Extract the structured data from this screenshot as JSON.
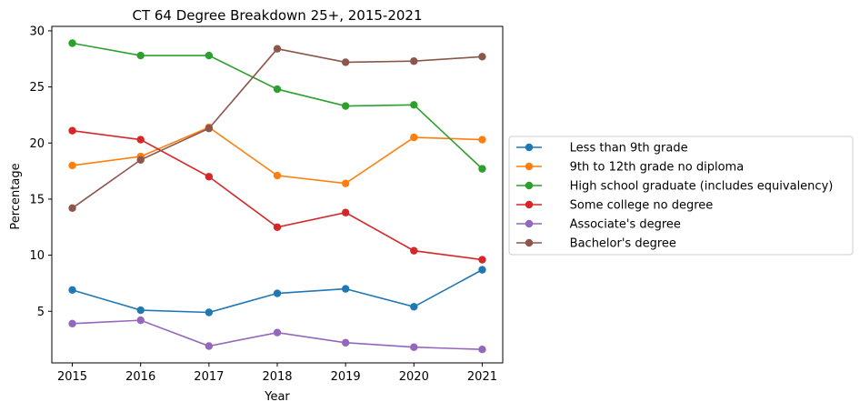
{
  "chart_data": {
    "type": "line",
    "title": "CT 64 Degree Breakdown 25+, 2015-2021",
    "xlabel": "Year",
    "ylabel": "Percentage",
    "x": [
      2015,
      2016,
      2017,
      2018,
      2019,
      2020,
      2021
    ],
    "xticks": [
      "2015",
      "2016",
      "2017",
      "2018",
      "2019",
      "2020",
      "2021"
    ],
    "ylim": [
      0.4,
      30.4
    ],
    "yticks": [
      5,
      10,
      15,
      20,
      25,
      30
    ],
    "ytick_labels": [
      "5",
      "10",
      "15",
      "20",
      "25",
      "30"
    ],
    "grid": false,
    "legend_position": "center-right (outside plot)",
    "series": [
      {
        "name": "     Less than 9th grade",
        "color": "#1f77b4",
        "values": [
          6.9,
          5.1,
          4.9,
          6.6,
          7.0,
          5.4,
          8.7
        ]
      },
      {
        "name": "     9th to 12th grade no diploma",
        "color": "#ff7f0e",
        "values": [
          18.0,
          18.8,
          21.4,
          17.1,
          16.4,
          20.5,
          20.3
        ]
      },
      {
        "name": "     High school graduate (includes equivalency)",
        "color": "#2ca02c",
        "values": [
          28.9,
          27.8,
          27.8,
          24.8,
          23.3,
          23.4,
          17.7
        ]
      },
      {
        "name": "     Some college no degree",
        "color": "#d62728",
        "values": [
          21.1,
          20.3,
          17.0,
          12.5,
          13.8,
          10.4,
          9.6
        ]
      },
      {
        "name": "     Associate's degree",
        "color": "#9467bd",
        "values": [
          3.9,
          4.2,
          1.9,
          3.1,
          2.2,
          1.8,
          1.6
        ]
      },
      {
        "name": "     Bachelor's degree",
        "color": "#8c564b",
        "values": [
          14.2,
          18.5,
          21.3,
          28.4,
          27.2,
          27.3,
          27.7
        ]
      }
    ]
  }
}
